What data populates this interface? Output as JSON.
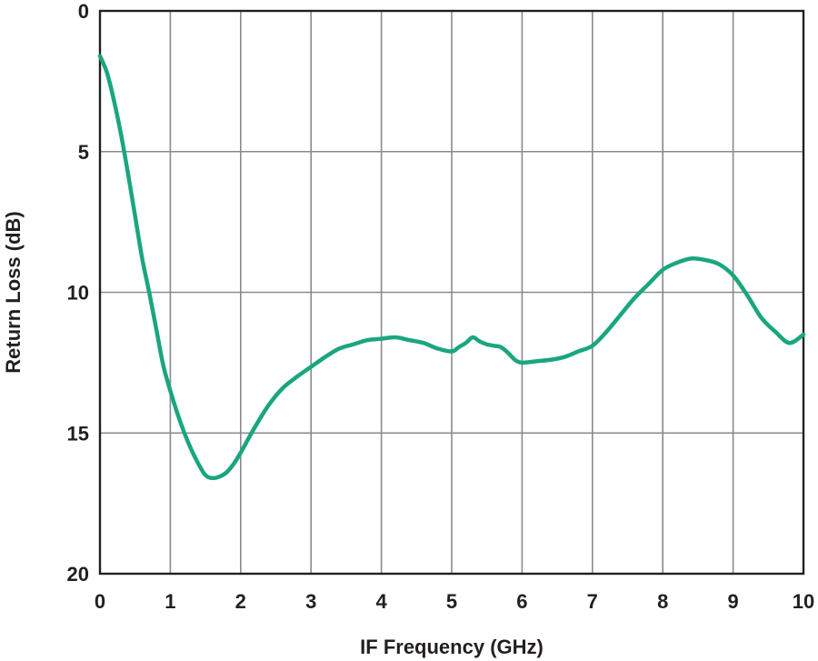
{
  "chart_data": {
    "type": "line",
    "title": "",
    "xlabel": "IF Frequency (GHz)",
    "ylabel": "Return Loss (dB)",
    "xlim": [
      0,
      10
    ],
    "ylim": [
      0,
      20
    ],
    "y_inverted": true,
    "grid": true,
    "legend": "none",
    "x_ticks": [
      "0",
      "1",
      "2",
      "3",
      "4",
      "5",
      "6",
      "7",
      "8",
      "9",
      "10"
    ],
    "y_ticks": [
      "0",
      "5",
      "10",
      "15",
      "20"
    ],
    "series": [
      {
        "color": "#1aa67e",
        "x": [
          0,
          0.1,
          0.2,
          0.3,
          0.4,
          0.5,
          0.6,
          0.7,
          0.8,
          0.9,
          1.0,
          1.1,
          1.2,
          1.3,
          1.4,
          1.5,
          1.6,
          1.7,
          1.8,
          1.9,
          2.0,
          2.2,
          2.4,
          2.6,
          2.8,
          3.0,
          3.2,
          3.4,
          3.6,
          3.8,
          4.0,
          4.2,
          4.4,
          4.6,
          4.8,
          5.0,
          5.1,
          5.2,
          5.3,
          5.4,
          5.5,
          5.6,
          5.7,
          5.8,
          5.9,
          6.0,
          6.2,
          6.4,
          6.6,
          6.8,
          7.0,
          7.2,
          7.4,
          7.6,
          7.8,
          8.0,
          8.2,
          8.4,
          8.6,
          8.8,
          9.0,
          9.2,
          9.4,
          9.6,
          9.8,
          10.0
        ],
        "y": [
          1.6,
          2.2,
          3.2,
          4.4,
          5.8,
          7.3,
          8.8,
          10.0,
          11.3,
          12.6,
          13.5,
          14.3,
          15.0,
          15.6,
          16.1,
          16.5,
          16.6,
          16.55,
          16.4,
          16.1,
          15.7,
          14.8,
          14.0,
          13.4,
          13.0,
          12.65,
          12.3,
          12.0,
          11.85,
          11.7,
          11.65,
          11.6,
          11.7,
          11.8,
          12.0,
          12.1,
          11.95,
          11.8,
          11.6,
          11.75,
          11.85,
          11.9,
          11.95,
          12.15,
          12.4,
          12.5,
          12.45,
          12.4,
          12.3,
          12.1,
          11.9,
          11.4,
          10.8,
          10.2,
          9.7,
          9.2,
          8.95,
          8.8,
          8.85,
          9.0,
          9.4,
          10.1,
          10.9,
          11.4,
          11.8,
          11.5
        ]
      }
    ]
  }
}
